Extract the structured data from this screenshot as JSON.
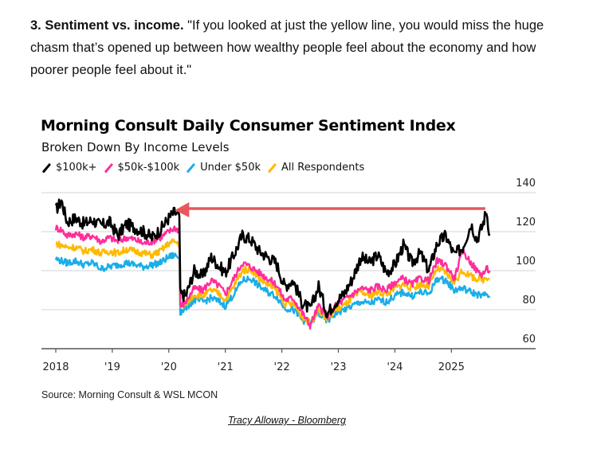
{
  "intro": {
    "lead": "3. Sentiment vs. income.",
    "quote": " \"If you looked at just the yellow line, you would miss the huge chasm that’s opened up between how wealthy people feel about the economy and how poorer people feel about it.\""
  },
  "credit": "Tracy Alloway - Bloomberg",
  "chart_data": {
    "type": "line",
    "title": "Morning Consult Daily Consumer Sentiment Index",
    "subtitle": "Broken Down By Income Levels",
    "source": "Source: Morning Consult & WSL MCON",
    "xlabel": "",
    "ylabel": "",
    "xlim": [
      2018.0,
      2026.5
    ],
    "ylim": [
      60,
      140
    ],
    "yticks": [
      60,
      80,
      100,
      120,
      140
    ],
    "xticks": [
      {
        "value": 2018,
        "label": "2018"
      },
      {
        "value": 2019,
        "label": "'19"
      },
      {
        "value": 2020,
        "label": "'20"
      },
      {
        "value": 2021,
        "label": "'21"
      },
      {
        "value": 2022,
        "label": "'22"
      },
      {
        "value": 2023,
        "label": "'23"
      },
      {
        "value": 2024,
        "label": "'24"
      },
      {
        "value": 2025,
        "label": "2025"
      }
    ],
    "grid": true,
    "yaxis_side": "right",
    "legend_position": "top-left",
    "annotation": {
      "type": "arrow",
      "color": "#e8585a",
      "from": {
        "x": 2025.6,
        "y": 131
      },
      "to": {
        "x": 2020.05,
        "y": 129
      },
      "description": "Arrow from current $100k+ level back to early-2020 level"
    },
    "x": [
      2018.0,
      2018.1,
      2018.2,
      2018.35,
      2018.5,
      2018.65,
      2018.8,
      2018.95,
      2019.1,
      2019.25,
      2019.4,
      2019.55,
      2019.7,
      2019.85,
      2020.0,
      2020.1,
      2020.17,
      2020.22,
      2020.3,
      2020.45,
      2020.6,
      2020.75,
      2020.9,
      2021.0,
      2021.15,
      2021.3,
      2021.45,
      2021.6,
      2021.75,
      2021.9,
      2022.05,
      2022.2,
      2022.35,
      2022.5,
      2022.65,
      2022.8,
      2022.95,
      2023.1,
      2023.25,
      2023.4,
      2023.55,
      2023.7,
      2023.85,
      2024.0,
      2024.15,
      2024.3,
      2024.45,
      2024.6,
      2024.75,
      2024.9,
      2025.05,
      2025.2,
      2025.35,
      2025.45,
      2025.55,
      2025.62,
      2025.68
    ],
    "series": [
      {
        "name": "$100k+",
        "color": "#000000",
        "values": [
          131,
          136,
          125,
          127,
          124,
          126,
          123,
          125,
          118,
          124,
          122,
          120,
          117,
          121,
          127,
          130,
          128,
          88,
          87,
          100,
          97,
          107,
          102,
          99,
          108,
          118,
          116,
          110,
          107,
          104,
          92,
          95,
          84,
          80,
          92,
          78,
          84,
          88,
          96,
          107,
          104,
          108,
          99,
          103,
          113,
          104,
          109,
          100,
          114,
          118,
          108,
          112,
          124,
          116,
          123,
          131,
          118
        ]
      },
      {
        "name": "$50k-$100k",
        "color": "#ff2e9a",
        "values": [
          122,
          121,
          118,
          119,
          117,
          118,
          115,
          117,
          115,
          117,
          116,
          114,
          115,
          117,
          120,
          122,
          121,
          82,
          84,
          91,
          90,
          95,
          92,
          88,
          96,
          104,
          102,
          99,
          96,
          93,
          85,
          86,
          79,
          72,
          82,
          76,
          82,
          85,
          88,
          91,
          90,
          92,
          90,
          94,
          96,
          93,
          96,
          95,
          105,
          103,
          96,
          110,
          104,
          100,
          98,
          101,
          100
        ]
      },
      {
        "name": "Under $50k",
        "color": "#1aaee8",
        "values": [
          106,
          105,
          104,
          105,
          103,
          104,
          101,
          102,
          103,
          104,
          103,
          102,
          103,
          104,
          107,
          108,
          107,
          79,
          81,
          85,
          84,
          86,
          84,
          82,
          88,
          95,
          96,
          92,
          89,
          87,
          81,
          80,
          75,
          73,
          78,
          74,
          78,
          80,
          82,
          84,
          83,
          85,
          84,
          87,
          89,
          87,
          89,
          88,
          96,
          95,
          90,
          91,
          89,
          88,
          87,
          88,
          87
        ]
      },
      {
        "name": "All Respondents",
        "color": "#ffb900",
        "values": [
          114,
          113,
          112,
          112,
          110,
          111,
          109,
          110,
          109,
          111,
          110,
          109,
          108,
          110,
          114,
          115,
          114,
          81,
          83,
          88,
          87,
          90,
          88,
          85,
          92,
          100,
          101,
          96,
          93,
          90,
          83,
          83,
          77,
          73,
          80,
          75,
          80,
          82,
          86,
          89,
          87,
          89,
          88,
          91,
          93,
          91,
          93,
          92,
          101,
          99,
          94,
          100,
          97,
          96,
          95,
          97,
          96
        ]
      }
    ]
  }
}
